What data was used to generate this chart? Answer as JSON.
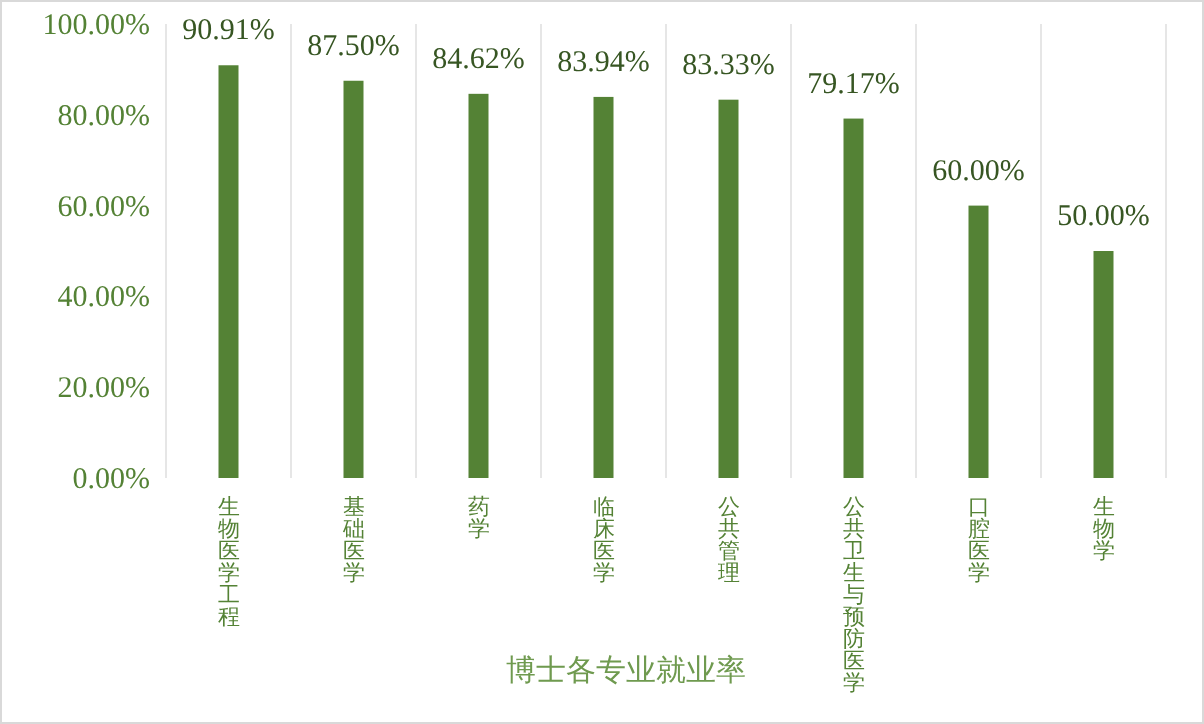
{
  "chart_data": {
    "type": "bar",
    "xlabel": "博士各专业就业率",
    "categories": [
      "生物医学工程",
      "基础医学",
      "药学",
      "临床医学",
      "公共管理",
      "公共卫生与预防医学",
      "口腔医学",
      "生物学"
    ],
    "values": [
      90.91,
      87.5,
      84.62,
      83.94,
      83.33,
      79.17,
      60,
      50
    ],
    "value_labels": [
      "90.91%",
      "87.50%",
      "84.62%",
      "83.94%",
      "83.33%",
      "79.17%",
      "60.00%",
      "50.00%"
    ],
    "color": "#548235",
    "ylim": [
      0,
      100
    ],
    "yticks": [
      {
        "value": 0,
        "label": "0.00%"
      },
      {
        "value": 20,
        "label": "20.00%"
      },
      {
        "value": 40,
        "label": "40.00%"
      },
      {
        "value": 60,
        "label": "60.00%"
      },
      {
        "value": 80,
        "label": "80.00%"
      },
      {
        "value": 100,
        "label": "100.00%"
      }
    ],
    "grid": "x"
  }
}
